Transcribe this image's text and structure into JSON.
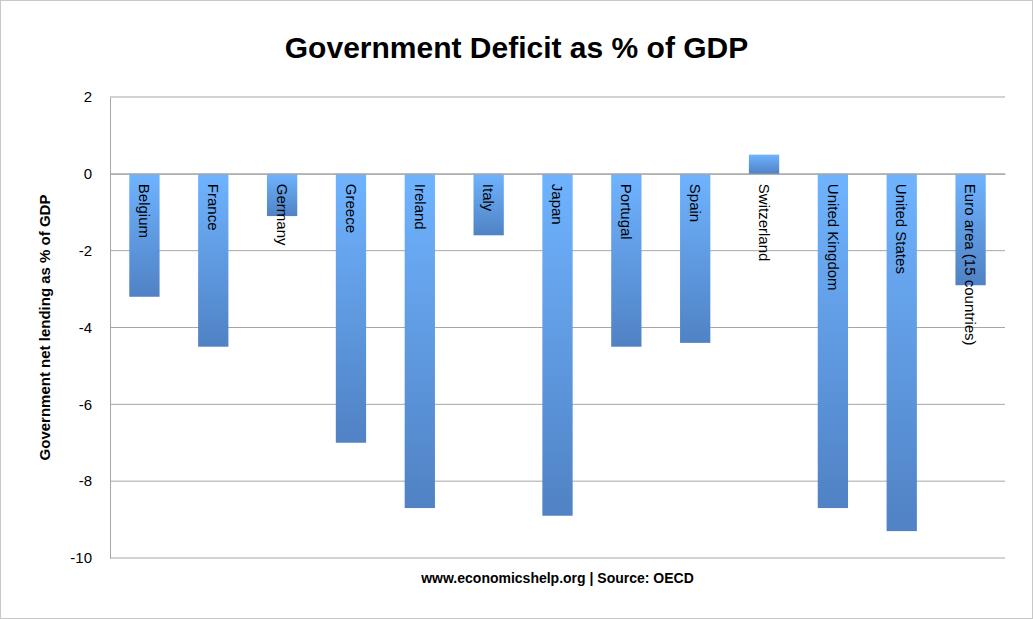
{
  "chart_data": {
    "type": "bar",
    "title": "Government Deficit as % of GDP",
    "y_label": "Government net lending as % of GDP",
    "x_label": "www.economicshelp.org | Source: OECD",
    "categories": [
      "Belgium",
      "France",
      "Germany",
      "Greece",
      "Ireland",
      "Italy",
      "Japan",
      "Portugal",
      "Spain",
      "Switzerland",
      "United Kingdom",
      "United States",
      "Euro area (15 countries)"
    ],
    "values": [
      -3.2,
      -4.5,
      -1.1,
      -7.0,
      -8.7,
      -1.6,
      -8.9,
      -4.5,
      -4.4,
      0.5,
      -8.7,
      -9.3,
      -2.9
    ],
    "color": "#5b93de",
    "ylim": [
      -10,
      2
    ],
    "yticks": [
      -10,
      -8,
      -6,
      -4,
      -2,
      0,
      2
    ],
    "grid": true
  }
}
